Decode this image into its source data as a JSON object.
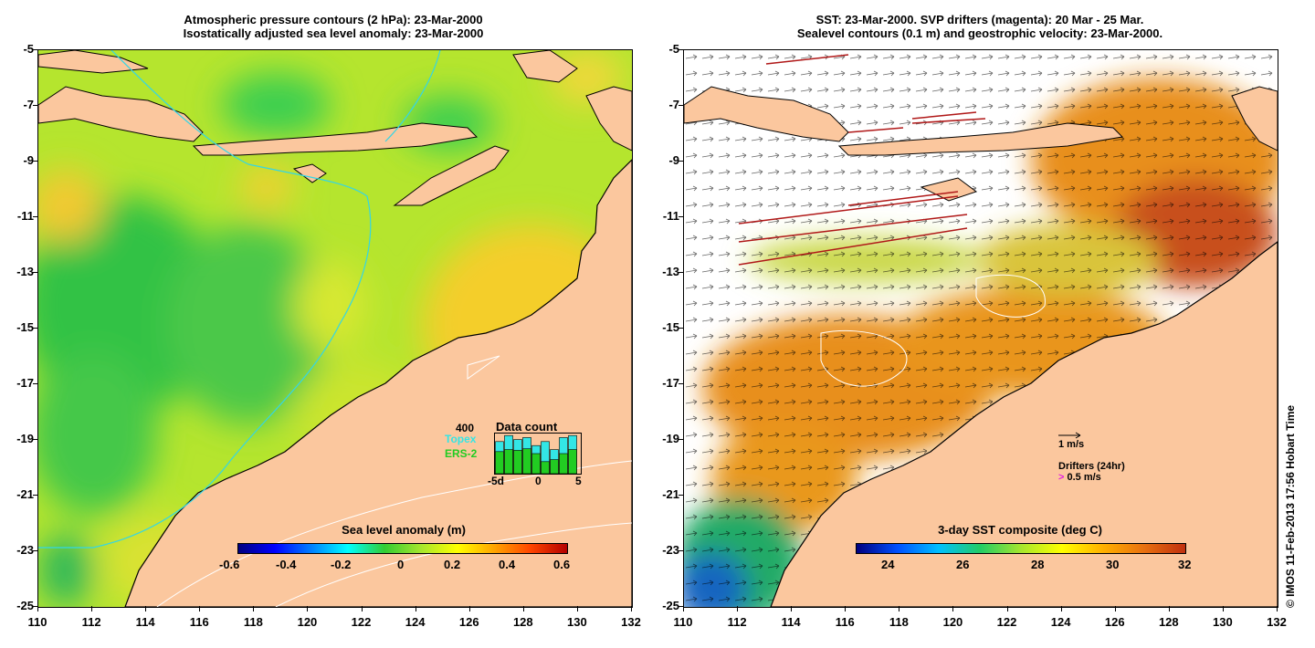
{
  "left_panel": {
    "title_line1": "Atmospheric pressure contours (2 hPa): 23-Mar-2000",
    "title_line2": "Isostatically adjusted sea level anomaly: 23-Mar-2000",
    "colorbar_label": "Sea level anomaly (m)",
    "colorbar_ticks": [
      "-0.6",
      "-0.4",
      "-0.2",
      "0",
      "0.2",
      "0.4",
      "0.6"
    ],
    "data_count": {
      "title": "Data count",
      "max_label": "400",
      "series_a": "Topex",
      "series_b": "ERS-2",
      "axis_labels": [
        "-5d",
        "0",
        "5"
      ],
      "series_a_fraction": [
        0.8,
        0.95,
        0.85,
        0.9,
        0.7,
        0.8,
        0.6,
        0.9,
        0.95
      ],
      "series_b_fraction": [
        0.55,
        0.6,
        0.58,
        0.62,
        0.5,
        0.3,
        0.35,
        0.5,
        0.6
      ],
      "colors": {
        "series_a": "#33e6e6",
        "series_b": "#22cc22"
      }
    }
  },
  "right_panel": {
    "title_line1": "SST: 23-Mar-2000. SVP drifters (magenta): 20 Mar - 25 Mar.",
    "title_line2": "Sealevel contours (0.1 m) and geostrophic velocity: 23-Mar-2000.",
    "colorbar_label": "3-day SST composite (deg C)",
    "colorbar_ticks": [
      "24",
      "26",
      "28",
      "30",
      "32"
    ],
    "legend_velocity": "1 m/s",
    "legend_drifters": "Drifters (24hr)",
    "legend_drifter_speed": "0.5 m/s"
  },
  "axes": {
    "y_labels": [
      "-5",
      "-7",
      "-9",
      "-11",
      "-13",
      "-15",
      "-17",
      "-19",
      "-21",
      "-23",
      "-25"
    ],
    "x_labels": [
      "110",
      "112",
      "114",
      "116",
      "118",
      "120",
      "122",
      "124",
      "126",
      "128",
      "130",
      "132"
    ]
  },
  "copyright": "© IMOS 11-Feb-2013 17:56 Hobart Time",
  "colors": {
    "land": "#fbc79e",
    "ocean_mid": "#9ee33a",
    "ocean_low": "#33cc33",
    "sst_warm": "#e98a1a",
    "sst_hot": "#c0461e"
  }
}
